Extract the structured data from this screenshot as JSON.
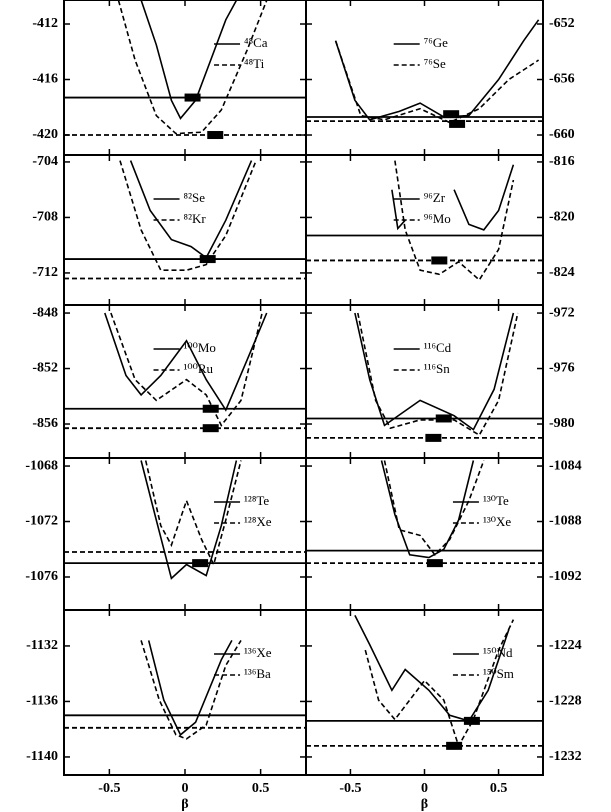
{
  "chart_data": [
    {
      "type": "line",
      "xlim": [
        -0.8,
        0.8
      ],
      "xticks": [
        -0.5,
        0,
        0.5
      ],
      "ylim": [
        -421.44,
        -410.27
      ],
      "yticks": [
        -420,
        -416,
        -412
      ],
      "yaxis_side": "left",
      "legend": "upper right",
      "series": [
        {
          "name": "⁴⁸Ca",
          "style": "solid",
          "color": "#000000",
          "x": [
            -0.29,
            -0.19,
            -0.09,
            -0.03,
            0.07,
            0.17,
            0.27,
            0.34
          ],
          "values": [
            -410.27,
            -413.5,
            -417.5,
            -418.8,
            -417.5,
            -414.6,
            -411.7,
            -410.3
          ],
          "level": -417.3,
          "marker": {
            "x": 0.05,
            "y": -417.3
          }
        },
        {
          "name": "⁴⁸Ti",
          "style": "dashed",
          "color": "#000000",
          "x": [
            -0.44,
            -0.33,
            -0.19,
            -0.06,
            0.11,
            0.24,
            0.41,
            0.54
          ],
          "values": [
            -410.3,
            -414.6,
            -418.6,
            -419.9,
            -419.8,
            -418.2,
            -413.9,
            -410.3
          ],
          "level": -420,
          "marker": {
            "x": 0.2,
            "y": -420
          }
        }
      ]
    },
    {
      "type": "line",
      "xlim": [
        -0.8,
        0.8
      ],
      "xticks": [
        -0.5,
        0,
        0.5
      ],
      "ylim": [
        -661.44,
        -650.27
      ],
      "yticks": [
        -660,
        -656,
        -652
      ],
      "yaxis_side": "right",
      "legend": "upper center",
      "series": [
        {
          "name": "⁷⁶Ge",
          "style": "solid",
          "color": "#000000",
          "x": [
            -0.6,
            -0.47,
            -0.37,
            -0.17,
            -0.03,
            0.13,
            0.3,
            0.5,
            0.67,
            0.77
          ],
          "values": [
            -653.2,
            -657.5,
            -658.9,
            -658.3,
            -657.7,
            -658.7,
            -658.6,
            -656.0,
            -653.2,
            -651.7
          ],
          "level": -658.7,
          "marker": {
            "x": 0.18,
            "y": -658.5
          }
        },
        {
          "name": "⁷⁶Se",
          "style": "dashed",
          "color": "#000000",
          "x": [
            -0.6,
            -0.43,
            -0.27,
            -0.03,
            0.17,
            0.37,
            0.57,
            0.77
          ],
          "values": [
            -653.2,
            -658.6,
            -658.9,
            -658.1,
            -659.1,
            -658.1,
            -656.0,
            -654.6
          ],
          "level": -659.0,
          "marker": {
            "x": 0.22,
            "y": -659.2
          }
        }
      ]
    },
    {
      "type": "line",
      "xlim": [
        -0.8,
        0.8
      ],
      "xticks": [
        -0.5,
        0,
        0.5
      ],
      "ylim": [
        -714.31,
        -703.5
      ],
      "yticks": [
        -712,
        -708,
        -704
      ],
      "yaxis_side": "left",
      "legend": "upper center",
      "series": [
        {
          "name": "⁸²Se",
          "style": "solid",
          "color": "#000000",
          "x": [
            -0.36,
            -0.23,
            -0.09,
            0.04,
            0.14,
            0.27,
            0.44
          ],
          "values": [
            -703.9,
            -707.5,
            -709.6,
            -710.1,
            -710.9,
            -708.2,
            -703.9
          ],
          "level": -711.0,
          "marker": {
            "x": 0.15,
            "y": -711.0
          }
        },
        {
          "name": "⁸²Kr",
          "style": "dashed",
          "color": "#000000",
          "x": [
            -0.43,
            -0.29,
            -0.16,
            0.01,
            0.14,
            0.27,
            0.47
          ],
          "values": [
            -703.9,
            -708.9,
            -711.8,
            -711.8,
            -711.4,
            -709.3,
            -703.9
          ],
          "level": -712.4
        }
      ]
    },
    {
      "type": "line",
      "xlim": [
        -0.8,
        0.8
      ],
      "xticks": [
        -0.5,
        0,
        0.5
      ],
      "ylim": [
        -826.31,
        -815.5
      ],
      "yticks": [
        -824,
        -820,
        -816
      ],
      "yaxis_side": "right",
      "legend": "upper center",
      "series": [
        {
          "name": "⁹⁶Zr",
          "style": "solid",
          "color": "#000000",
          "x": [
            -0.22,
            -0.18,
            -0.13,
            0.03,
            0.2,
            0.3,
            0.4,
            0.5,
            0.6
          ],
          "values": [
            -818.0,
            -820.8,
            -820.2,
            null,
            -818.0,
            -820.5,
            -820.9,
            -819.5,
            -816.2
          ],
          "level": -821.3
        },
        {
          "name": "⁹⁶Mo",
          "style": "dashed",
          "color": "#000000",
          "x": [
            -0.2,
            -0.13,
            -0.03,
            0.1,
            0.23,
            0.37,
            0.5,
            0.6
          ],
          "values": [
            -815.9,
            -820.9,
            -823.8,
            -824.1,
            -823.2,
            -824.5,
            -822.3,
            -817.3
          ],
          "level": -823.1,
          "marker": {
            "x": 0.1,
            "y": -823.1
          }
        }
      ]
    },
    {
      "type": "line",
      "xlim": [
        -0.8,
        0.8
      ],
      "xticks": [
        -0.5,
        0,
        0.5
      ],
      "ylim": [
        -858.45,
        -847.42
      ],
      "yticks": [
        -856,
        -852,
        -848
      ],
      "yaxis_side": "left",
      "legend": "upper center",
      "series": [
        {
          "name": "¹⁰⁰Mo",
          "style": "solid",
          "color": "#000000",
          "x": [
            -0.53,
            -0.39,
            -0.29,
            -0.16,
            0.01,
            0.14,
            0.27,
            0.41,
            0.54
          ],
          "values": [
            -848,
            -852.5,
            -853.9,
            -852.5,
            -850.0,
            -852.8,
            -855.0,
            -851.4,
            -848
          ],
          "level": -854.9,
          "marker": {
            "x": 0.17,
            "y": -854.9
          }
        },
        {
          "name": "¹⁰⁰Ru",
          "style": "dashed",
          "color": "#000000",
          "x": [
            -0.49,
            -0.33,
            -0.19,
            0.01,
            0.14,
            0.24,
            0.37,
            0.51
          ],
          "values": [
            -848,
            -852.8,
            -854.3,
            -852.8,
            -853.9,
            -856.1,
            -854.3,
            -848
          ],
          "level": -856.3,
          "marker": {
            "x": 0.17,
            "y": -856.3
          }
        }
      ]
    },
    {
      "type": "line",
      "xlim": [
        -0.8,
        0.8
      ],
      "xticks": [
        -0.5,
        0,
        0.5
      ],
      "ylim": [
        -982.45,
        -971.42
      ],
      "yticks": [
        -980,
        -976,
        -972
      ],
      "yaxis_side": "right",
      "legend": "upper center",
      "series": [
        {
          "name": "¹¹⁶Cd",
          "style": "solid",
          "color": "#000000",
          "x": [
            -0.47,
            -0.37,
            -0.27,
            -0.03,
            0.2,
            0.33,
            0.47,
            0.6
          ],
          "values": [
            -972,
            -976.8,
            -980.1,
            -978.3,
            -979.4,
            -980.4,
            -977.5,
            -972
          ],
          "level": -979.6,
          "marker": {
            "x": 0.13,
            "y": -979.6
          }
        },
        {
          "name": "¹¹⁶Sn",
          "style": "dashed",
          "color": "#000000",
          "x": [
            -0.45,
            -0.33,
            -0.23,
            -0.03,
            0.2,
            0.37,
            0.5,
            0.63
          ],
          "values": [
            -972,
            -978.3,
            -980.3,
            -979.7,
            -979.7,
            -980.8,
            -978.3,
            -972
          ],
          "level": -981.0,
          "marker": {
            "x": 0.06,
            "y": -981.0
          }
        }
      ]
    },
    {
      "type": "line",
      "xlim": [
        -0.8,
        0.8
      ],
      "xticks": [
        -0.5,
        0,
        0.5
      ],
      "ylim": [
        -1078.38,
        -1067.42
      ],
      "yticks": [
        -1076,
        -1072,
        -1068
      ],
      "yaxis_side": "left",
      "legend": "upper right",
      "series": [
        {
          "name": "¹²⁸Te",
          "style": "solid",
          "color": "#000000",
          "x": [
            -0.29,
            -0.19,
            -0.09,
            0.01,
            0.14,
            0.24,
            0.34
          ],
          "values": [
            -1067.6,
            -1071.9,
            -1076.1,
            -1075.1,
            -1075.9,
            -1072.3,
            -1067.6
          ],
          "level": -1075.0,
          "marker": {
            "x": 0.1,
            "y": -1075.0
          }
        },
        {
          "name": "¹²⁸Xe",
          "style": "dashed",
          "color": "#000000",
          "x": [
            -0.26,
            -0.16,
            -0.09,
            0.01,
            0.11,
            0.19,
            0.27,
            0.37
          ],
          "values": [
            -1067.6,
            -1072.3,
            -1073.7,
            -1070.5,
            -1073.3,
            -1075.1,
            -1071.9,
            -1067.6
          ],
          "level": -1074.2
        }
      ]
    },
    {
      "type": "line",
      "xlim": [
        -0.8,
        0.8
      ],
      "xticks": [
        -0.5,
        0,
        0.5
      ],
      "ylim": [
        -1094.38,
        -1083.42
      ],
      "yticks": [
        -1092,
        -1088,
        -1084
      ],
      "yaxis_side": "right",
      "legend": "upper right",
      "series": [
        {
          "name": "¹³⁰Te",
          "style": "solid",
          "color": "#000000",
          "x": [
            -0.29,
            -0.2,
            -0.1,
            0.03,
            0.13,
            0.23,
            0.33
          ],
          "values": [
            -1083.6,
            -1087.5,
            -1090.4,
            -1090.6,
            -1090.0,
            -1087.9,
            -1083.6
          ],
          "level": -1090.1
        },
        {
          "name": "¹³⁰Xe",
          "style": "dashed",
          "color": "#000000",
          "x": [
            -0.27,
            -0.17,
            -0.03,
            0.07,
            0.17,
            0.3,
            0.4
          ],
          "values": [
            -1083.6,
            -1088.6,
            -1089.0,
            -1090.4,
            -1089.3,
            -1086.5,
            -1083.6
          ],
          "level": -1091.0,
          "marker": {
            "x": 0.07,
            "y": -1091.0
          }
        }
      ]
    },
    {
      "type": "line",
      "xlim": [
        -0.8,
        0.8
      ],
      "xticks": [
        -0.5,
        0,
        0.5
      ],
      "ylim": [
        -1141.3,
        -1129.41
      ],
      "yticks": [
        -1140,
        -1136,
        -1132
      ],
      "yaxis_side": "left",
      "legend": "upper right",
      "x_label": "β",
      "series": [
        {
          "name": "¹³⁶Xe",
          "style": "solid",
          "color": "#000000",
          "x": [
            -0.24,
            -0.14,
            -0.03,
            0.07,
            0.24,
            0.31
          ],
          "values": [
            -1131.6,
            -1135.9,
            -1138.4,
            -1137.5,
            -1133.0,
            -1131.6
          ],
          "level": -1137.0
        },
        {
          "name": "¹³⁶Ba",
          "style": "dashed",
          "color": "#000000",
          "x": [
            -0.29,
            -0.17,
            -0.06,
            0.01,
            0.14,
            0.27,
            0.37
          ],
          "values": [
            -1131.6,
            -1135.9,
            -1138.4,
            -1138.7,
            -1137.7,
            -1133.4,
            -1131.6
          ],
          "level": -1137.9
        }
      ]
    },
    {
      "type": "line",
      "xlim": [
        -0.8,
        0.8
      ],
      "xticks": [
        -0.5,
        0,
        0.5
      ],
      "ylim": [
        -1233.3,
        -1221.41
      ],
      "yticks": [
        -1232,
        -1228,
        -1224
      ],
      "yaxis_side": "right",
      "legend": "upper right",
      "x_label": "β",
      "series": [
        {
          "name": "¹⁵⁰Nd",
          "style": "solid",
          "color": "#000000",
          "x": [
            -0.47,
            -0.37,
            -0.22,
            -0.13,
            0.03,
            0.17,
            0.3,
            0.43,
            0.57
          ],
          "values": [
            -1221.8,
            -1223.9,
            -1227.2,
            -1225.7,
            -1227.2,
            -1229.0,
            -1229.4,
            -1227.2,
            -1222.8
          ],
          "level": -1229.4,
          "marker": {
            "x": 0.32,
            "y": -1229.4
          }
        },
        {
          "name": "¹⁵⁰Sm",
          "style": "dashed",
          "color": "#000000",
          "x": [
            -0.4,
            -0.31,
            -0.2,
            0,
            0.13,
            0.23,
            0.33,
            0.5,
            0.6
          ],
          "values": [
            -1224.3,
            -1227.9,
            -1229.3,
            -1226.5,
            -1227.9,
            -1231.2,
            -1229.3,
            -1224.3,
            -1222.1
          ],
          "level": -1231.2,
          "marker": {
            "x": 0.2,
            "y": -1231.2
          }
        }
      ]
    }
  ]
}
